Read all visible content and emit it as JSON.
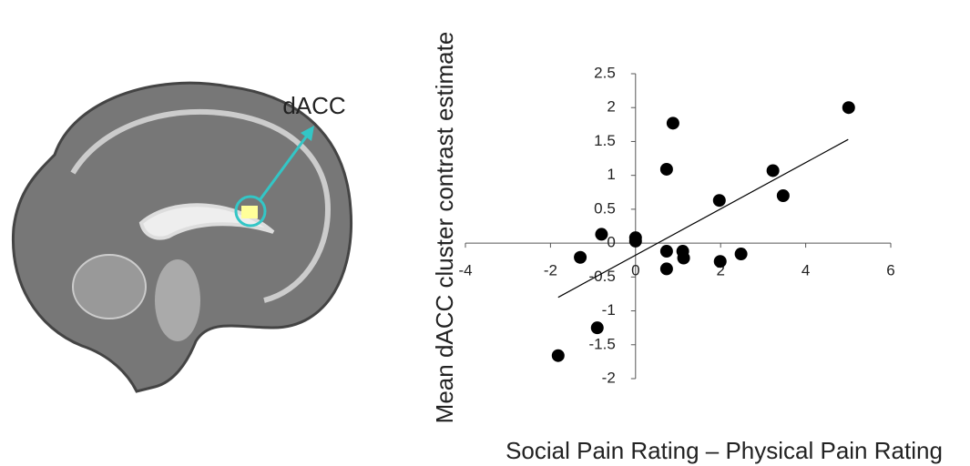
{
  "image_label": "dACC",
  "chart_data": {
    "type": "scatter",
    "x_label": "Social Pain Rating – Physical Pain Rating",
    "y_label": "Mean dACC cluster contrast estimate",
    "x": [
      -1.82,
      -1.3,
      -0.9,
      -0.8,
      0.0,
      0.0,
      0.73,
      0.73,
      0.73,
      0.88,
      1.11,
      1.13,
      1.97,
      1.99,
      2.48,
      3.23,
      3.47,
      5.01
    ],
    "values": [
      -1.66,
      -0.21,
      -1.25,
      0.13,
      0.08,
      0.03,
      1.09,
      -0.12,
      -0.38,
      1.77,
      -0.12,
      -0.22,
      0.63,
      -0.27,
      -0.16,
      1.07,
      0.7,
      2.0
    ],
    "color": "#000000",
    "trendline": {
      "x": [
        -1.82,
        5.0
      ],
      "y": [
        -0.8,
        1.53
      ]
    },
    "xlim": [
      -4,
      6
    ],
    "xticks": [
      -4,
      -2,
      0,
      2,
      4,
      6
    ],
    "ylim": [
      -2,
      2.5
    ],
    "yticks": [
      -2,
      -1.5,
      -1,
      -0.5,
      0,
      0.5,
      1,
      1.5,
      2,
      2.5
    ]
  }
}
